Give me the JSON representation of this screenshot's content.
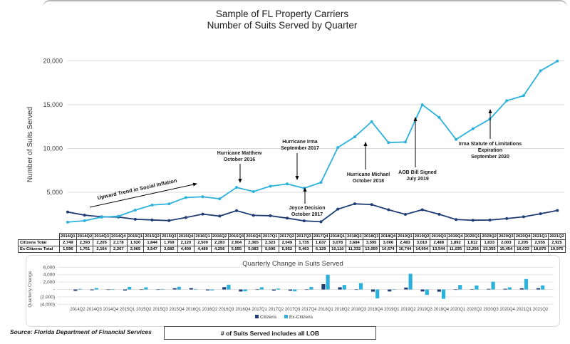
{
  "title": {
    "line1": "Sample of FL Property Carriers",
    "line2": "Number of Suits Served by Quarter"
  },
  "colors": {
    "citizens": "#1F3C74",
    "ex_citizens": "#2BB2DC",
    "grid": "#D9D9D9",
    "bar_grid": "#E3E3E3",
    "text": "#404040"
  },
  "chart_data": [
    {
      "id": "suits-served-line",
      "type": "line",
      "title": "Number of Suits Served by Quarter",
      "ylabel": "Number of Suits Served",
      "ylim": [
        0,
        20000
      ],
      "grid": true,
      "yticks": [
        {
          "value": 5000,
          "label": "5,000"
        },
        {
          "value": 10000,
          "label": "10,000"
        },
        {
          "value": 15000,
          "label": "15,000"
        },
        {
          "value": 20000,
          "label": "20,000"
        }
      ],
      "categories": [
        "2014Q1",
        "2014Q2",
        "2014Q3",
        "2014Q4",
        "2015Q1",
        "2015Q2",
        "2015Q3",
        "2015Q4",
        "2016Q1",
        "2016Q2",
        "2016Q3",
        "2016Q4",
        "2017Q1",
        "2017Q2",
        "2017Q3",
        "2017Q4",
        "2018Q1",
        "2018Q2",
        "2018Q3",
        "2018Q4",
        "2019Q1",
        "2019Q2",
        "2019Q3",
        "2019Q4",
        "2020Q1",
        "2020Q2",
        "2020Q3",
        "2020Q4",
        "2021Q1",
        "2021Q2"
      ],
      "series": [
        {
          "name": "Citizens Total",
          "color": "citizens",
          "values": [
            2749,
            2393,
            2205,
            2178,
            1920,
            1844,
            1769,
            2120,
            2509,
            2283,
            2904,
            2365,
            2323,
            2049,
            1735,
            1637,
            3078,
            3684,
            3595,
            3006,
            2483,
            3010,
            2488,
            1892,
            1812,
            1833,
            2003,
            2205,
            2555,
            2925
          ]
        },
        {
          "name": "Ex-Citizens Total",
          "color": "ex_citizens",
          "values": [
            1596,
            1761,
            2164,
            2267,
            2965,
            3547,
            3682,
            4400,
            4489,
            4256,
            5555,
            5083,
            5696,
            5952,
            5463,
            6129,
            10110,
            11332,
            13059,
            10674,
            10744,
            14994,
            13544,
            11035,
            12256,
            13355,
            15454,
            16033,
            18870,
            19975
          ]
        }
      ],
      "annotations": [
        {
          "id": "trend",
          "text": "Upward Trend in Social Inflation"
        },
        {
          "id": "matthew",
          "text": "Hurricane Matthew\nOctober 2016",
          "anchor": "2016Q3"
        },
        {
          "id": "irma",
          "text": "Hurricane Irma\nSeptember 2017",
          "anchor": "2017Q3"
        },
        {
          "id": "joyce",
          "text": "Joyce Decision\nOctober 2017",
          "anchor": "2017Q4"
        },
        {
          "id": "michael",
          "text": "Hurricane Michael\nOctober 2018",
          "anchor": "2018Q4"
        },
        {
          "id": "aob",
          "text": "AOB Bill Signed\nJuly 2019",
          "anchor": "2019Q2"
        },
        {
          "id": "sol",
          "text": "Irma Statute of Limitations\nExpiration\nSeptember 2020",
          "anchor": "2020Q4"
        }
      ]
    },
    {
      "id": "quarterly-change-bar",
      "type": "bar",
      "title": "Quarterly Change in Suits Served",
      "ylabel": "Quarterly Change",
      "ylim": [
        -4000,
        6000
      ],
      "grid": true,
      "legend_position": "bottom",
      "yticks": [
        {
          "value": 6000,
          "label": "6,000"
        },
        {
          "value": 4000,
          "label": "4,000"
        },
        {
          "value": 2000,
          "label": "2,000"
        },
        {
          "value": 0,
          "label": "-"
        },
        {
          "value": -2000,
          "label": "(2,000)"
        },
        {
          "value": -4000,
          "label": "(4,000)"
        }
      ],
      "categories": [
        "2014Q2",
        "2014Q3",
        "2014Q4",
        "2015Q1",
        "2015Q2",
        "2015Q3",
        "2015Q4",
        "2016Q1",
        "2016Q2",
        "2016Q3",
        "2016Q4",
        "2017Q1",
        "2017Q2",
        "2017Q3",
        "2017Q4",
        "2018Q1",
        "2018Q2",
        "2018Q3",
        "2018Q4",
        "2019Q1",
        "2019Q2",
        "2019Q3",
        "2019Q4",
        "2020Q1",
        "2020Q2",
        "2020Q3",
        "2020Q4",
        "2021Q1",
        "2021Q2"
      ],
      "series": [
        {
          "name": "Citizens",
          "color": "citizens",
          "values": [
            -356,
            -188,
            -27,
            -258,
            -76,
            -75,
            351,
            389,
            -226,
            621,
            -539,
            -42,
            -274,
            -314,
            -98,
            1441,
            606,
            -89,
            -589,
            -523,
            527,
            -522,
            -596,
            -80,
            21,
            170,
            202,
            350,
            370
          ]
        },
        {
          "name": "Ex-Citizens",
          "color": "ex_citizens",
          "values": [
            165,
            403,
            103,
            698,
            582,
            135,
            718,
            89,
            -233,
            1299,
            -472,
            613,
            256,
            -489,
            666,
            3981,
            1222,
            1727,
            -2385,
            70,
            4250,
            -1450,
            -2509,
            1221,
            1099,
            2099,
            579,
            2837,
            1105
          ]
        }
      ],
      "legend": [
        {
          "label": "Citizens",
          "color": "citizens"
        },
        {
          "label": "Ex-Citizens",
          "color": "ex_citizens"
        }
      ]
    }
  ],
  "table": {
    "columns": [
      "2014Q1",
      "2014Q2",
      "2014Q3",
      "2014Q4",
      "2015Q1",
      "2015Q2",
      "2015Q3",
      "2015Q4",
      "2016Q1",
      "2016Q2",
      "2016Q3",
      "2016Q4",
      "2017Q1",
      "2017Q2",
      "2017Q3",
      "2017Q4",
      "2018Q1",
      "2018Q2",
      "2018Q3",
      "2018Q4",
      "2019Q1",
      "2019Q2",
      "2019Q3",
      "2019Q4",
      "2020Q1",
      "2020Q2",
      "2020Q3",
      "2020Q4",
      "2021Q1",
      "2021Q2"
    ],
    "rows": [
      {
        "label": "Citizens Total",
        "values": [
          "2,749",
          "2,393",
          "2,205",
          "2,178",
          "1,920",
          "1,844",
          "1,769",
          "2,120",
          "2,509",
          "2,283",
          "2,904",
          "2,365",
          "2,323",
          "2,049",
          "1,735",
          "1,637",
          "3,078",
          "3,684",
          "3,595",
          "3,006",
          "2,483",
          "3,010",
          "2,488",
          "1,892",
          "1,812",
          "1,833",
          "2,003",
          "2,205",
          "2,555",
          "2,925"
        ]
      },
      {
        "label": "Ex-Citizens Total",
        "values": [
          "1,596",
          "1,761",
          "2,164",
          "2,267",
          "2,965",
          "3,547",
          "3,682",
          "4,400",
          "4,489",
          "4,256",
          "5,555",
          "5,083",
          "5,696",
          "5,952",
          "5,463",
          "6,129",
          "10,110",
          "11,332",
          "13,059",
          "10,674",
          "10,744",
          "14,994",
          "13,544",
          "11,035",
          "12,256",
          "13,355",
          "15,454",
          "16,033",
          "18,870",
          "19,975"
        ]
      }
    ]
  },
  "footer": {
    "source": "Source: Florida Department of Financial Services",
    "note": "# of Suits Served includes all LOB"
  }
}
